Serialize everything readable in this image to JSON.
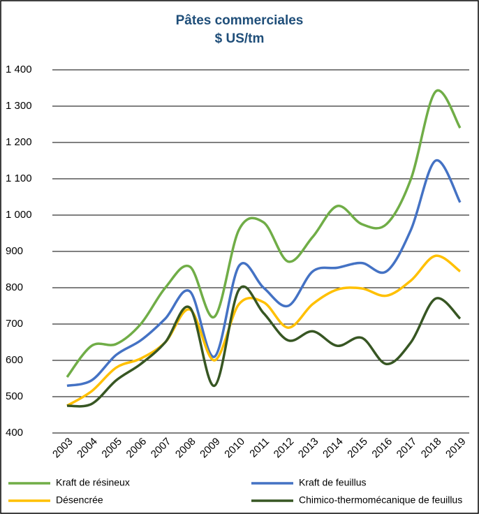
{
  "chart_data": {
    "type": "line",
    "title": "Pâtes commerciales",
    "subtitle": "$ US/tm",
    "categories": [
      "2003",
      "2004",
      "2005",
      "2006",
      "2007",
      "2008",
      "2009",
      "2010",
      "2011",
      "2012",
      "2013",
      "2014",
      "2015",
      "2016",
      "2017",
      "2018",
      "2019"
    ],
    "series": [
      {
        "name": "Kraft de résineux",
        "color": "#70ad47",
        "values": [
          554,
          640,
          645,
          700,
          800,
          858,
          720,
          960,
          980,
          872,
          940,
          1025,
          975,
          975,
          1100,
          1340,
          1240
        ]
      },
      {
        "name": "Kraft de feuillus",
        "color": "#4472c4",
        "values": [
          530,
          545,
          615,
          655,
          715,
          790,
          610,
          860,
          800,
          750,
          845,
          855,
          868,
          845,
          960,
          1150,
          1035
        ]
      },
      {
        "name": "Désencrée",
        "color": "#ffc000",
        "values": [
          475,
          515,
          580,
          605,
          650,
          740,
          600,
          755,
          760,
          690,
          755,
          795,
          798,
          778,
          820,
          888,
          845
        ]
      },
      {
        "name": "Chimico-thermomécanique de feuillus",
        "color": "#375623",
        "values": [
          475,
          480,
          545,
          590,
          650,
          745,
          530,
          795,
          730,
          655,
          680,
          640,
          662,
          590,
          650,
          770,
          715
        ]
      }
    ],
    "ylim": [
      400,
      1400
    ],
    "yticks": [
      400,
      500,
      600,
      700,
      800,
      900,
      {
        "value": 1000,
        "label": "1 000"
      },
      {
        "value": 1100,
        "label": "1 100"
      },
      {
        "value": 1200,
        "label": "1 200"
      },
      {
        "value": 1300,
        "label": "1 300"
      },
      {
        "value": 1400,
        "label": "1 400"
      }
    ],
    "grid": true
  }
}
